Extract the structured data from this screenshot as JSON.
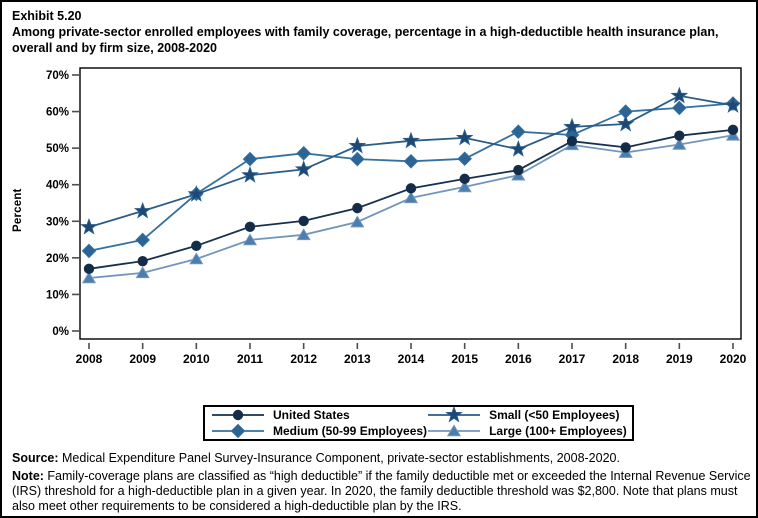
{
  "title": {
    "exhibit": "Exhibit 5.20",
    "text": "Among private-sector enrolled employees with family coverage, percentage in a high-deductible health insurance plan, overall and by firm size, 2008-2020"
  },
  "chart_data": {
    "type": "line",
    "title": "Among private-sector enrolled employees with family coverage, percentage in a high-deductible health insurance plan, overall and by firm size, 2008-2020",
    "xlabel": "",
    "ylabel": "Percent",
    "ylim": [
      0,
      70
    ],
    "grid": false,
    "legend_position": "bottom",
    "x": [
      2008,
      2009,
      2010,
      2011,
      2012,
      2013,
      2014,
      2015,
      2016,
      2017,
      2018,
      2019,
      2020
    ],
    "xtick_labels": [
      "2008",
      "2009",
      "2010",
      "2011",
      "2012",
      "2013",
      "2014",
      "2015",
      "2016",
      "2017",
      "2018",
      "2019",
      "2020"
    ],
    "ytick_values": [
      0,
      10,
      20,
      30,
      40,
      50,
      60,
      70
    ],
    "ytick_labels": [
      "0%",
      "10%",
      "20%",
      "30%",
      "40%",
      "50%",
      "60%",
      "70%"
    ],
    "series": [
      {
        "name": "United States",
        "marker": "circle",
        "line_color": "#16304e",
        "fill_color": "#142c48",
        "values": [
          17.0,
          19.1,
          23.3,
          28.5,
          30.1,
          33.6,
          39.0,
          41.6,
          44.0,
          51.9,
          50.2,
          53.4,
          55.0
        ]
      },
      {
        "name": "Small (<50 Employees)",
        "marker": "star",
        "line_color": "#2a5c88",
        "fill_color": "#1d4876",
        "values": [
          28.4,
          32.8,
          37.4,
          42.6,
          44.2,
          50.6,
          52.0,
          52.8,
          49.7,
          55.8,
          56.6,
          64.3,
          61.7
        ]
      },
      {
        "name": "Medium (50-99 Employees)",
        "marker": "diamond",
        "line_color": "#34719f",
        "fill_color": "#2d6496",
        "values": [
          21.9,
          24.9,
          37.5,
          47.0,
          48.6,
          47.0,
          46.4,
          47.1,
          54.5,
          53.6,
          60.0,
          61.0,
          62.2
        ]
      },
      {
        "name": "Large (100+ Employees)",
        "marker": "triangle",
        "line_color": "#7296ba",
        "fill_color": "#4a7eae",
        "values": [
          14.5,
          15.9,
          19.7,
          24.9,
          26.3,
          29.8,
          36.4,
          39.4,
          42.6,
          50.9,
          48.8,
          51.0,
          53.5
        ]
      }
    ]
  },
  "source": {
    "label": "Source:",
    "text": " Medical Expenditure Panel Survey-Insurance Component, private-sector establishments, 2008-2020."
  },
  "note": {
    "label": "Note:",
    "text": " Family-coverage plans are classified as “high deductible” if the family deductible met or exceeded the Internal Revenue Service (IRS) threshold for a high-deductible plan in a given year. In 2020, the family deductible threshold was $2,800. Note that plans must also meet other requirements to be considered a high-deductible plan by the IRS."
  }
}
